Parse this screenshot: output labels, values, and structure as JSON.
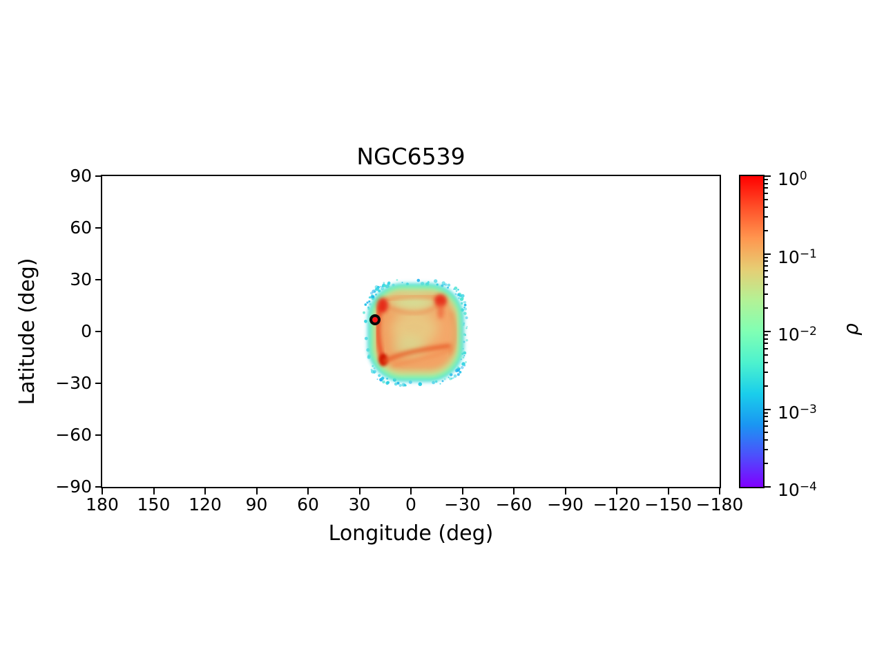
{
  "title": "NGC6539",
  "axes": {
    "xlabel": "Longitude (deg)",
    "ylabel": "Latitude (deg)",
    "xlim": [
      180,
      -180
    ],
    "ylim": [
      -90,
      90
    ],
    "x_ticks": [
      {
        "v": 180,
        "label": "180"
      },
      {
        "v": 150,
        "label": "150"
      },
      {
        "v": 120,
        "label": "120"
      },
      {
        "v": 90,
        "label": "90"
      },
      {
        "v": 60,
        "label": "60"
      },
      {
        "v": 30,
        "label": "30"
      },
      {
        "v": 0,
        "label": "0"
      },
      {
        "v": -30,
        "label": "−30"
      },
      {
        "v": -60,
        "label": "−60"
      },
      {
        "v": -90,
        "label": "−90"
      },
      {
        "v": -120,
        "label": "−120"
      },
      {
        "v": -150,
        "label": "−150"
      },
      {
        "v": -180,
        "label": "−180"
      }
    ],
    "y_ticks": [
      {
        "v": 90,
        "label": "90"
      },
      {
        "v": 60,
        "label": "60"
      },
      {
        "v": 30,
        "label": "30"
      },
      {
        "v": 0,
        "label": "0"
      },
      {
        "v": -30,
        "label": "−30"
      },
      {
        "v": -60,
        "label": "−60"
      },
      {
        "v": -90,
        "label": "−90"
      }
    ]
  },
  "colorbar": {
    "label": "ρ",
    "scale": "log",
    "vmin": 0.0001,
    "vmax": 1,
    "ticks": [
      {
        "exp": 0,
        "base": "10",
        "exp_label": "0"
      },
      {
        "exp": -1,
        "base": "10",
        "exp_label": "−1"
      },
      {
        "exp": -2,
        "base": "10",
        "exp_label": "−2"
      },
      {
        "exp": -3,
        "base": "10",
        "exp_label": "−3"
      },
      {
        "exp": -4,
        "base": "10",
        "exp_label": "−4"
      }
    ],
    "colormap": "rainbow",
    "gradient_stops_top_to_bottom": [
      "#ff0000",
      "#ff4f28",
      "#ff964f",
      "#e6ce74",
      "#b3f296",
      "#80ffb4",
      "#4df2ce",
      "#1aceeb",
      "#1a96f2",
      "#4d4ffc",
      "#8000ff"
    ]
  },
  "marker": {
    "name": "NGC6539 cluster position",
    "lon": 20.8,
    "lat": 6.8,
    "fill": "#f51616",
    "edge": "#0a0a0a"
  },
  "chart_data": {
    "type": "heatmap",
    "title": "NGC6539",
    "xlabel": "Longitude (deg)",
    "ylabel": "Latitude (deg)",
    "xlim": [
      180,
      -180
    ],
    "ylim": [
      -90,
      90
    ],
    "grid": false,
    "colorbar_label": "ρ",
    "colorbar_scale": "log",
    "colorbar_range": [
      0.0001,
      1
    ],
    "colormap": "rainbow",
    "density_field": {
      "description": "Rounded-square cloud of simulated debris density centred near the Galactic centre; noisy cyan low-density rim (~1e-3), aquamarine-to-green transition band (~1e-2), orange interior (~1e-1) and red high-density ridges/knots (~0.5-1) along the edges",
      "center": {
        "lon": -2,
        "lat": 1
      },
      "lon_extent": [
        28,
        -31
      ],
      "lat_extent": [
        30,
        -29
      ],
      "rim_density": 0.001,
      "interior_density_range": [
        0.02,
        0.3
      ],
      "features": [
        {
          "type": "ridge",
          "shape": "vertical band along left edge",
          "lon": 19.5,
          "lat_range": [
            -16,
            17
          ],
          "peak_density": 0.6
        },
        {
          "type": "knot",
          "lon": 12,
          "lat": 16.5,
          "peak_density": 0.85
        },
        {
          "type": "knot",
          "lon": -18.5,
          "lat": 17.5,
          "peak_density": 0.85
        },
        {
          "type": "knot",
          "lon": 15.5,
          "lat": -16,
          "peak_density": 1.0
        },
        {
          "type": "arc",
          "shape": "bottom arc from bottom-left knot toward lower-right edge",
          "lat": -12,
          "lon_range": [
            -21,
            14
          ],
          "peak_density": 0.5
        },
        {
          "type": "arc",
          "shape": "faint sagging arc below top edge between upper knots",
          "lat": 14,
          "lon_range": [
            -15,
            11
          ],
          "peak_density": 0.3
        },
        {
          "type": "patch",
          "shape": "pale low-density ellipse just inside top edge",
          "lon": 1,
          "lat": 17,
          "density": 0.02
        }
      ]
    },
    "marker": {
      "name": "NGC6539",
      "lon": 20.8,
      "lat": 6.8
    }
  }
}
